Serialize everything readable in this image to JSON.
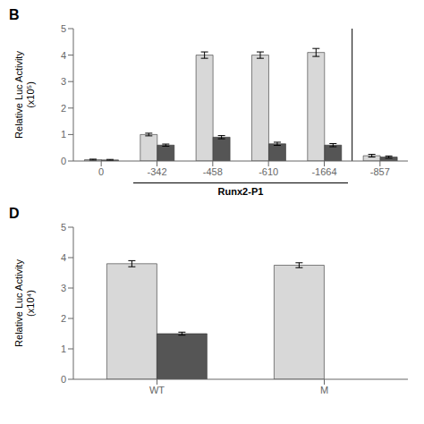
{
  "chart_data": [
    {
      "type": "bar",
      "title": "B",
      "categories": [
        "0",
        "-342",
        "-458",
        "-610",
        "-1664",
        "-857"
      ],
      "series": [
        {
          "color": "#d8d8d8",
          "values": [
            0.05,
            1.0,
            4.0,
            4.0,
            4.1,
            0.2
          ],
          "errors": [
            0.02,
            0.05,
            0.12,
            0.12,
            0.15,
            0.05
          ]
        },
        {
          "color": "#555555",
          "values": [
            0.04,
            0.6,
            0.9,
            0.65,
            0.6,
            0.15
          ],
          "errors": [
            0.02,
            0.04,
            0.06,
            0.06,
            0.06,
            0.04
          ]
        }
      ],
      "ylabel": "Relative Luc Activity\n(x10⁵)",
      "ylim": [
        0,
        5
      ],
      "yticks": [
        0,
        1,
        2,
        3,
        4,
        5
      ],
      "annotations": [
        {
          "text": "Runx2-P1",
          "from": "-342",
          "to": "-1664"
        }
      ],
      "separator_after": "-1664",
      "grid": false
    },
    {
      "type": "bar",
      "title": "D",
      "categories": [
        "WT",
        "M"
      ],
      "series": [
        {
          "color": "#d8d8d8",
          "values": [
            3.8,
            3.75
          ],
          "errors": [
            0.1,
            0.08
          ]
        },
        {
          "color": "#555555",
          "values": [
            1.5,
            0.0
          ],
          "errors": [
            0.05,
            0.0
          ]
        }
      ],
      "ylabel": "Relative Luc Activity\n(x10⁴)",
      "ylim": [
        0,
        5
      ],
      "yticks": [
        0,
        1,
        2,
        3,
        4,
        5
      ],
      "grid": false
    }
  ]
}
